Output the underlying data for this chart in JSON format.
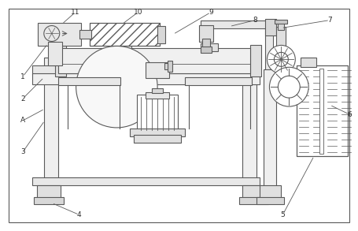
{
  "bg_color": "#ffffff",
  "lc": "#5a5a5a",
  "lw": 0.8,
  "fig_width": 4.55,
  "fig_height": 2.93,
  "dpi": 100
}
